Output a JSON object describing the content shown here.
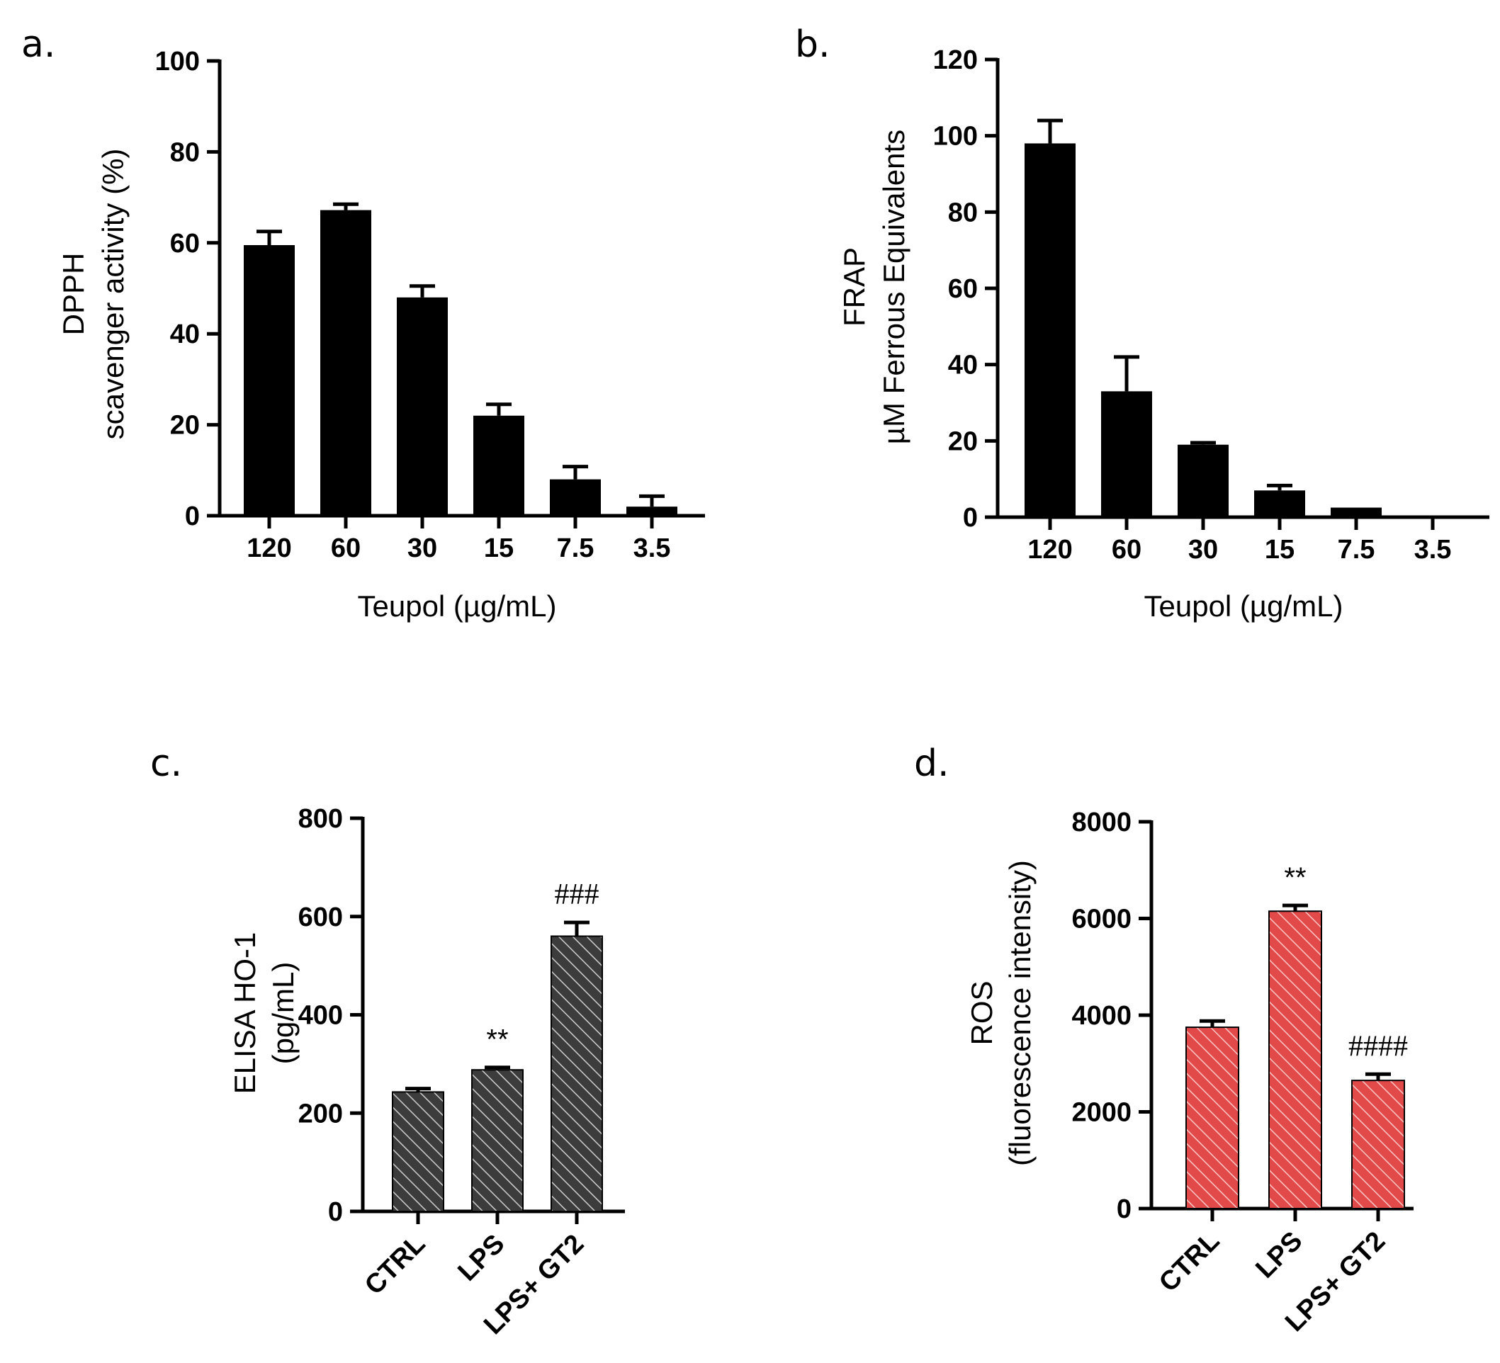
{
  "figure": {
    "panels": [
      "a.",
      "b.",
      "c.",
      "d."
    ]
  },
  "chart_data": [
    {
      "panel": "a.",
      "type": "bar",
      "categories": [
        "120",
        "60",
        "30",
        "15",
        "7.5",
        "3.5"
      ],
      "values": [
        59.5,
        67.2,
        48,
        22,
        8,
        2
      ],
      "errors": [
        3,
        1.3,
        2.5,
        2.5,
        2.8,
        2.3
      ],
      "xlabel": "Teupol (µg/mL)",
      "ylabel_lines": [
        "DPPH",
        "scavenger activity (%)"
      ],
      "ylim": [
        0,
        100
      ],
      "yticks": [
        0,
        20,
        40,
        60,
        80,
        100
      ],
      "fill": "#000000"
    },
    {
      "panel": "b.",
      "type": "bar",
      "categories": [
        "120",
        "60",
        "30",
        "15",
        "7.5",
        "3.5"
      ],
      "values": [
        98,
        33,
        19,
        7,
        2.5,
        0
      ],
      "errors": [
        6,
        9,
        0.5,
        1.3,
        0,
        0
      ],
      "xlabel": "Teupol (µg/mL)",
      "ylabel_lines": [
        "FRAP",
        "µM Ferrous Equivalents"
      ],
      "ylim": [
        0,
        120
      ],
      "yticks": [
        0,
        20,
        40,
        60,
        80,
        100,
        120
      ],
      "fill": "#000000"
    },
    {
      "panel": "c.",
      "type": "bar",
      "categories": [
        "CTRL",
        "LPS",
        "LPS+ GT2"
      ],
      "values": [
        243,
        288,
        560
      ],
      "errors": [
        7,
        5,
        28
      ],
      "annotations": [
        "",
        "**",
        "###"
      ],
      "ylabel_lines": [
        "ELISA HO-1",
        "(pg/mL)"
      ],
      "ylim": [
        0,
        800
      ],
      "yticks": [
        0,
        200,
        400,
        600,
        800
      ],
      "fill": "#3c3c3c",
      "hatch": "#cfcfcf"
    },
    {
      "panel": "d.",
      "type": "bar",
      "categories": [
        "CTRL",
        "LPS",
        "LPS+ GT2"
      ],
      "values": [
        3750,
        6150,
        2650
      ],
      "errors": [
        130,
        120,
        130
      ],
      "annotations": [
        "",
        "**",
        "####"
      ],
      "ylabel_lines": [
        "ROS",
        "(fluorescence intensity)"
      ],
      "ylim": [
        0,
        8000
      ],
      "yticks": [
        0,
        2000,
        4000,
        6000,
        8000
      ],
      "fill": "#e24a4a",
      "hatch": "#f8c8c8"
    }
  ]
}
